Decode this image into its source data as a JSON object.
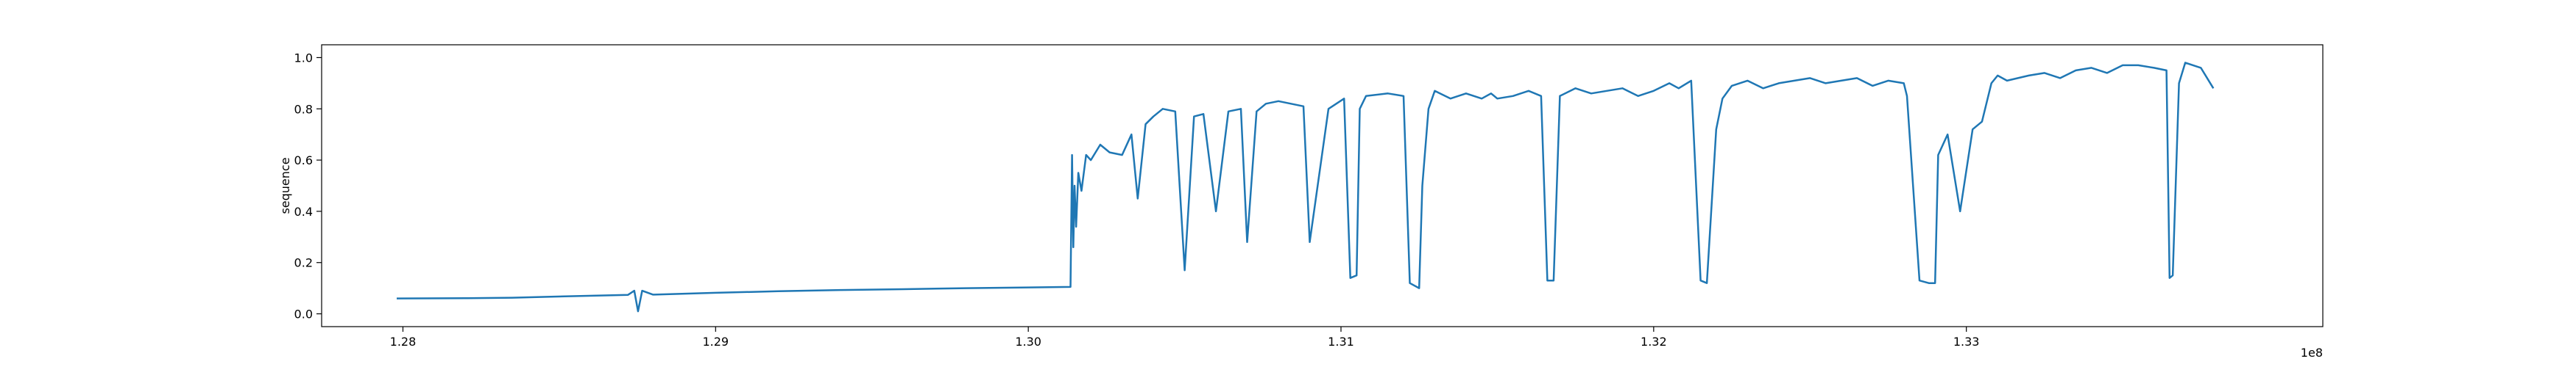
{
  "chart_data": {
    "type": "line",
    "title": "",
    "xlabel": "",
    "ylabel": "sequence",
    "x_offset_label": "1e8",
    "xlim": [
      127540000,
      133940000
    ],
    "ylim": [
      -0.05,
      1.05
    ],
    "xticks": [
      {
        "value": 127800000,
        "label": "1.28"
      },
      {
        "value": 128800000,
        "label": "1.29"
      },
      {
        "value": 129800000,
        "label": "1.30"
      },
      {
        "value": 130800000,
        "label": "1.31"
      },
      {
        "value": 131800000,
        "label": "1.32"
      },
      {
        "value": 132800000,
        "label": "1.33"
      }
    ],
    "yticks": [
      {
        "value": 0.0,
        "label": "0.0"
      },
      {
        "value": 0.2,
        "label": "0.2"
      },
      {
        "value": 0.4,
        "label": "0.4"
      },
      {
        "value": 0.6,
        "label": "0.6"
      },
      {
        "value": 0.8,
        "label": "0.8"
      },
      {
        "value": 1.0,
        "label": "1.0"
      }
    ],
    "grid": false,
    "legend": "none",
    "series": [
      {
        "color": "#1f77b4",
        "x": [
          127780000,
          128000000,
          128150000,
          128250000,
          128520000,
          128540000,
          128552000,
          128565000,
          128600000,
          128800000,
          129000000,
          129200000,
          129400000,
          129600000,
          129800000,
          129935000,
          129940000,
          129944000,
          129948000,
          129953000,
          129960000,
          129970000,
          129985000,
          130000000,
          130030000,
          130060000,
          130100000,
          130130000,
          130150000,
          130175000,
          130200000,
          130230000,
          130270000,
          130300000,
          130330000,
          130360000,
          130400000,
          130440000,
          130480000,
          130500000,
          130530000,
          130560000,
          130600000,
          130640000,
          130680000,
          130700000,
          130760000,
          130810000,
          130830000,
          130850000,
          130860000,
          130880000,
          130950000,
          131000000,
          131020000,
          131050000,
          131060000,
          131080000,
          131100000,
          131150000,
          131200000,
          131250000,
          131280000,
          131300000,
          131350000,
          131400000,
          131440000,
          131460000,
          131480000,
          131500000,
          131550000,
          131600000,
          131650000,
          131700000,
          131750000,
          131800000,
          131850000,
          131880000,
          131920000,
          131950000,
          131970000,
          132000000,
          132020000,
          132050000,
          132100000,
          132150000,
          132200000,
          132250000,
          132300000,
          132350000,
          132400000,
          132450000,
          132500000,
          132550000,
          132600000,
          132610000,
          132650000,
          132680000,
          132700000,
          132710000,
          132740000,
          132780000,
          132820000,
          132850000,
          132880000,
          132900000,
          132930000,
          133000000,
          133050000,
          133100000,
          133150000,
          133200000,
          133250000,
          133300000,
          133350000,
          133400000,
          133440000,
          133450000,
          133460000,
          133480000,
          133500000,
          133550000,
          133590000
        ],
        "y": [
          0.06,
          0.061,
          0.063,
          0.066,
          0.074,
          0.09,
          0.01,
          0.09,
          0.075,
          0.082,
          0.088,
          0.093,
          0.096,
          0.1,
          0.103,
          0.105,
          0.62,
          0.26,
          0.5,
          0.34,
          0.55,
          0.48,
          0.62,
          0.6,
          0.66,
          0.63,
          0.62,
          0.7,
          0.45,
          0.74,
          0.77,
          0.8,
          0.79,
          0.17,
          0.77,
          0.78,
          0.4,
          0.79,
          0.8,
          0.28,
          0.79,
          0.82,
          0.83,
          0.82,
          0.81,
          0.28,
          0.8,
          0.84,
          0.14,
          0.15,
          0.8,
          0.85,
          0.86,
          0.85,
          0.12,
          0.1,
          0.5,
          0.8,
          0.87,
          0.84,
          0.86,
          0.84,
          0.86,
          0.84,
          0.85,
          0.87,
          0.85,
          0.13,
          0.13,
          0.85,
          0.88,
          0.86,
          0.87,
          0.88,
          0.85,
          0.87,
          0.9,
          0.88,
          0.91,
          0.13,
          0.12,
          0.72,
          0.84,
          0.89,
          0.91,
          0.88,
          0.9,
          0.91,
          0.92,
          0.9,
          0.91,
          0.92,
          0.89,
          0.91,
          0.9,
          0.85,
          0.13,
          0.12,
          0.12,
          0.62,
          0.7,
          0.4,
          0.72,
          0.75,
          0.9,
          0.93,
          0.91,
          0.93,
          0.94,
          0.92,
          0.95,
          0.96,
          0.94,
          0.97,
          0.97,
          0.96,
          0.95,
          0.14,
          0.15,
          0.9,
          0.98,
          0.96,
          0.88
        ]
      }
    ]
  }
}
